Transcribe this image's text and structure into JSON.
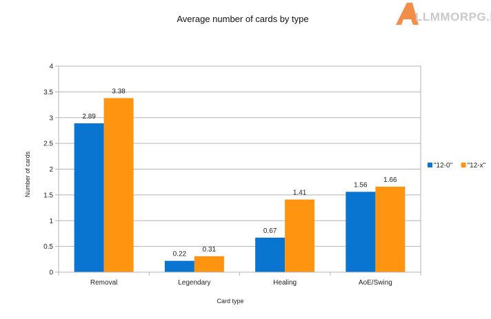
{
  "logo": {
    "text": "LLMMORPG.RU",
    "mark": "A"
  },
  "chart_data": {
    "type": "bar",
    "title": "Average number of cards by type",
    "xlabel": "Card type",
    "ylabel": "Number of cards",
    "categories": [
      "Removal",
      "Legendary",
      "Healing",
      "AoE/Swing"
    ],
    "series": [
      {
        "name": "\"12-0\"",
        "color": "#0a74d1",
        "values": [
          2.89,
          0.22,
          0.67,
          1.56
        ]
      },
      {
        "name": "\"12-x\"",
        "color": "#ff9410",
        "values": [
          3.38,
          0.31,
          1.41,
          1.66
        ]
      }
    ],
    "ylim": [
      0,
      4
    ],
    "yticks": [
      "0",
      "0.5",
      "1",
      "1.5",
      "2",
      "2.5",
      "3",
      "3.5",
      "4"
    ],
    "grid": true,
    "legend": "right"
  }
}
